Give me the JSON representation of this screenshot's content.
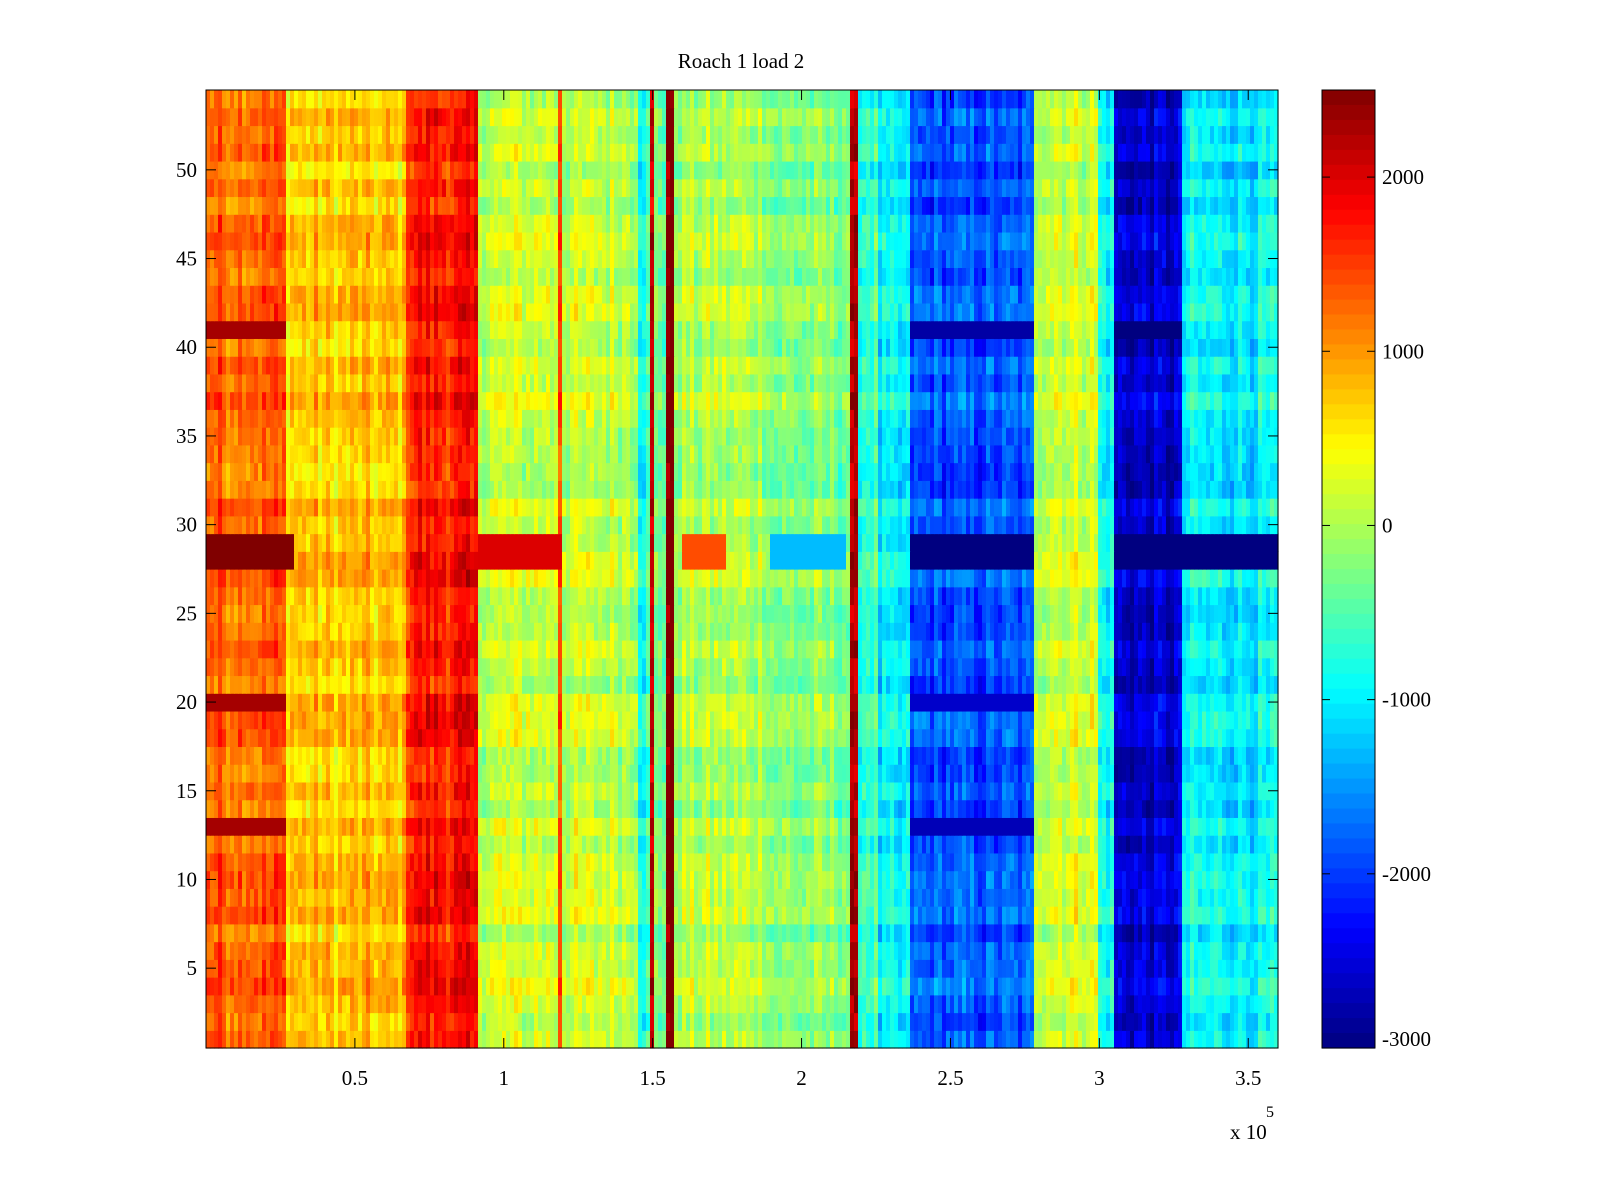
{
  "chart_data": {
    "type": "heatmap",
    "title": "Roach 1 load 2",
    "xlabel": "",
    "ylabel": "",
    "x_exponent_label": "x 10",
    "x_exponent_power": "5",
    "xlim": [
      0,
      3.6
    ],
    "ylim": [
      0.5,
      54.5
    ],
    "clim": [
      -3000,
      2500
    ],
    "colormap": "jet",
    "x_ticks": [
      0.5,
      1,
      1.5,
      2,
      2.5,
      3,
      3.5
    ],
    "x_tick_labels": [
      "0.5",
      "1",
      "1.5",
      "2",
      "2.5",
      "3",
      "3.5"
    ],
    "y_ticks": [
      5,
      10,
      15,
      20,
      25,
      30,
      35,
      40,
      45,
      50
    ],
    "y_tick_labels": [
      "5",
      "10",
      "15",
      "20",
      "25",
      "30",
      "35",
      "40",
      "45",
      "50"
    ],
    "colorbar_ticks": [
      -3000,
      -2000,
      -1000,
      0,
      1000,
      2000
    ],
    "colorbar_tick_labels": [
      "-3000",
      "-2000",
      "-1000",
      "0",
      "1000",
      "2000"
    ],
    "rows": 54,
    "column_bands": [
      {
        "x_start": 0.0,
        "x_end": 0.27,
        "value": 1300
      },
      {
        "x_start": 0.27,
        "x_end": 0.67,
        "value": 700
      },
      {
        "x_start": 0.67,
        "x_end": 0.92,
        "value": 1700
      },
      {
        "x_start": 0.92,
        "x_end": 1.18,
        "value": 150
      },
      {
        "x_start": 1.18,
        "x_end": 1.19,
        "value": 1500
      },
      {
        "x_start": 1.19,
        "x_end": 1.45,
        "value": 100
      },
      {
        "x_start": 1.45,
        "x_end": 1.49,
        "value": -700
      },
      {
        "x_start": 1.49,
        "x_end": 1.5,
        "value": 2000
      },
      {
        "x_start": 1.5,
        "x_end": 1.545,
        "value": -300
      },
      {
        "x_start": 1.545,
        "x_end": 1.565,
        "value": 2500
      },
      {
        "x_start": 1.565,
        "x_end": 1.9,
        "value": 0
      },
      {
        "x_start": 1.9,
        "x_end": 2.16,
        "value": -250
      },
      {
        "x_start": 2.16,
        "x_end": 2.19,
        "value": 2000
      },
      {
        "x_start": 2.19,
        "x_end": 2.26,
        "value": -600
      },
      {
        "x_start": 2.26,
        "x_end": 2.37,
        "value": -1100
      },
      {
        "x_start": 2.37,
        "x_end": 2.78,
        "value": -1900
      },
      {
        "x_start": 2.78,
        "x_end": 3.0,
        "value": 200
      },
      {
        "x_start": 3.0,
        "x_end": 3.05,
        "value": -900
      },
      {
        "x_start": 3.05,
        "x_end": 3.28,
        "value": -2600
      },
      {
        "x_start": 3.28,
        "x_end": 3.6,
        "value": -1000
      }
    ],
    "row_offsets": [
      {
        "row": 28,
        "x_start": 0.0,
        "x_end": 0.3,
        "value": 2500
      },
      {
        "row": 29,
        "x_start": 0.0,
        "x_end": 0.3,
        "value": 2500
      },
      {
        "row": 28,
        "x_start": 0.92,
        "x_end": 1.2,
        "value": 2000
      },
      {
        "row": 29,
        "x_start": 0.92,
        "x_end": 1.2,
        "value": 2000
      },
      {
        "row": 28,
        "x_start": 1.6,
        "x_end": 1.75,
        "value": 1400
      },
      {
        "row": 29,
        "x_start": 1.6,
        "x_end": 1.75,
        "value": 1400
      },
      {
        "row": 28,
        "x_start": 1.9,
        "x_end": 2.15,
        "value": -1300
      },
      {
        "row": 29,
        "x_start": 1.9,
        "x_end": 2.15,
        "value": -1300
      },
      {
        "row": 28,
        "x_start": 2.37,
        "x_end": 2.78,
        "value": -3000
      },
      {
        "row": 29,
        "x_start": 2.37,
        "x_end": 2.78,
        "value": -3000
      },
      {
        "row": 28,
        "x_start": 3.05,
        "x_end": 3.6,
        "value": -3000
      },
      {
        "row": 29,
        "x_start": 3.05,
        "x_end": 3.6,
        "value": -3000
      },
      {
        "row": 41,
        "x_start": 0.0,
        "x_end": 0.27,
        "value": 2300
      },
      {
        "row": 41,
        "x_start": 2.37,
        "x_end": 2.78,
        "value": -2800
      },
      {
        "row": 41,
        "x_start": 3.05,
        "x_end": 3.28,
        "value": -3000
      },
      {
        "row": 13,
        "x_start": 0.0,
        "x_end": 0.27,
        "value": 2300
      },
      {
        "row": 13,
        "x_start": 2.37,
        "x_end": 2.78,
        "value": -2700
      },
      {
        "row": 20,
        "x_start": 0.0,
        "x_end": 0.27,
        "value": 2300
      },
      {
        "row": 20,
        "x_start": 2.37,
        "x_end": 2.78,
        "value": -2600
      }
    ]
  }
}
